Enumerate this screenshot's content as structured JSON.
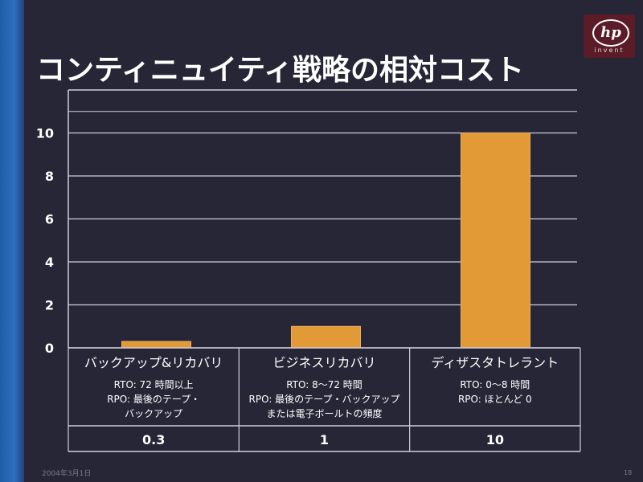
{
  "slide": {
    "title": "コンティニュイティ戦略の相対コスト",
    "logo_text": "hp",
    "logo_subtext": "invent",
    "footer_date": "2004年3月1日",
    "page_number": "18"
  },
  "colors": {
    "background": "#262637",
    "bar": "#e19a35",
    "grid": "#d0d0d8",
    "text": "#ffffff",
    "logo": "#5b1b27"
  },
  "chart_data": {
    "type": "bar",
    "ylim": [
      0,
      12
    ],
    "y_ticks": [
      0,
      2,
      4,
      6,
      8,
      10
    ],
    "grid": true,
    "categories": [
      {
        "label": "バックアップ&リカバリ",
        "value": 0.3,
        "value_label": "0.3",
        "details": [
          "RTO: 72 時間以上",
          "RPO: 最後のテープ・",
          "バックアップ"
        ]
      },
      {
        "label": "ビジネスリカバリ",
        "value": 1,
        "value_label": "1",
        "details": [
          "RTO: 8～72 時間",
          "RPO: 最後のテープ・バックアップ",
          "または電子ボールトの頻度"
        ]
      },
      {
        "label": "ディザスタトレラント",
        "value": 10,
        "value_label": "10",
        "details": [
          "RTO: 0～8 時間",
          "RPO: ほとんど 0"
        ]
      }
    ]
  }
}
